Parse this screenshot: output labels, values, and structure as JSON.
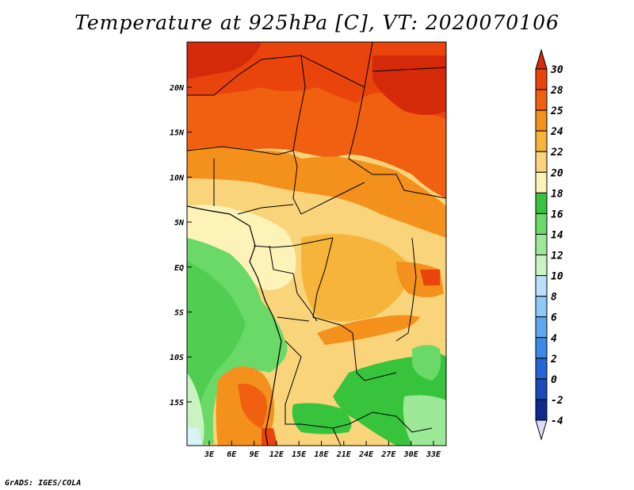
{
  "title": "Temperature at 925hPa [C], VT: 2020070106",
  "credit": "GrADS: IGES/COLA",
  "map": {
    "lat_labels": [
      "20N",
      "15N",
      "10N",
      "5N",
      "EQ",
      "5S",
      "10S",
      "15S"
    ],
    "lon_labels": [
      "3E",
      "6E",
      "9E",
      "12E",
      "15E",
      "18E",
      "21E",
      "24E",
      "27E",
      "30E",
      "33E"
    ]
  },
  "colorbar": {
    "labels": [
      "30",
      "28",
      "25",
      "24",
      "22",
      "20",
      "18",
      "16",
      "14",
      "12",
      "10",
      "8",
      "6",
      "4",
      "2",
      "0",
      "-2",
      "-4"
    ],
    "colors": [
      "#d42a0a",
      "#e8440c",
      "#f06010",
      "#f4901c",
      "#f6b43a",
      "#f9d47a",
      "#fdf2b8",
      "#37c43c",
      "#6ad968",
      "#9ce896",
      "#c9f4c2",
      "#b8e0fa",
      "#8ec8f4",
      "#5ea8ee",
      "#3a8ae6",
      "#2466d6",
      "#1a4ab8",
      "#0e2a8c",
      "#0a1a60"
    ],
    "top_arrow": "#d42a0a",
    "bottom_arrow": "#ddddf5"
  }
}
